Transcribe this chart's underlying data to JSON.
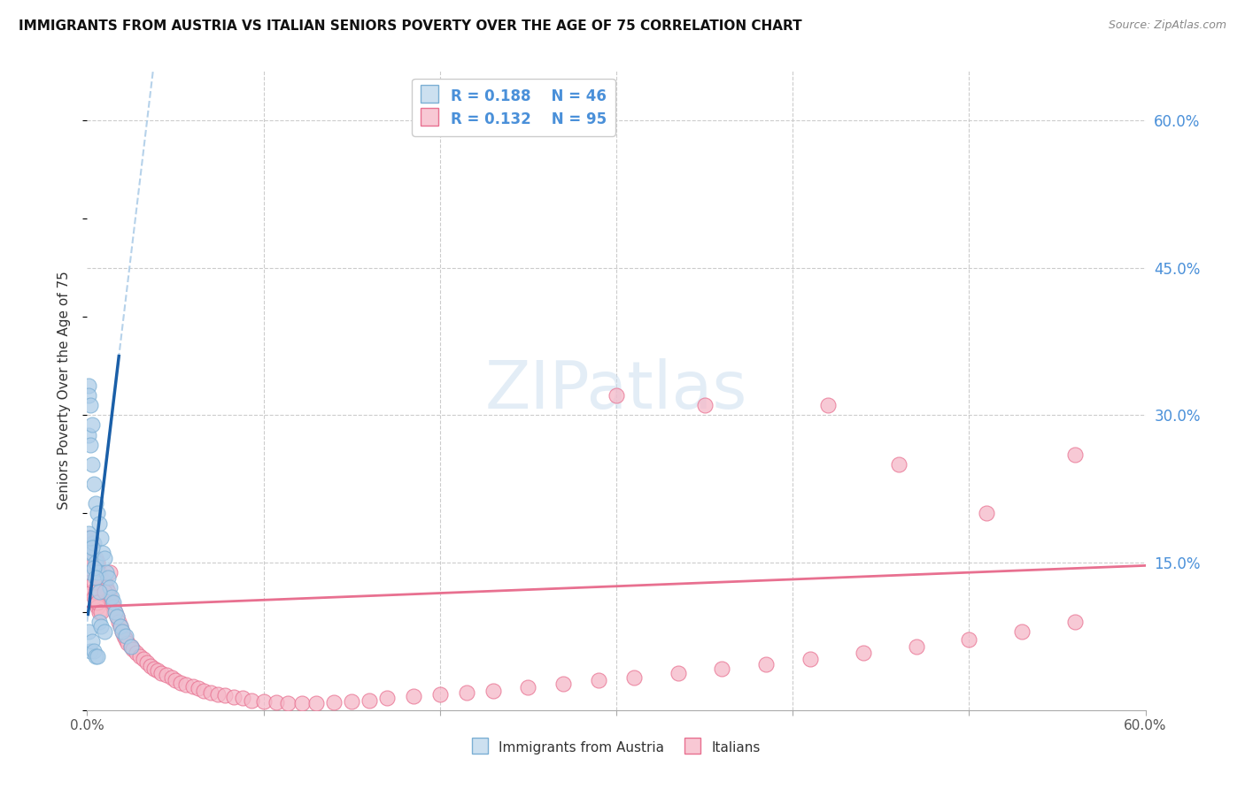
{
  "title": "IMMIGRANTS FROM AUSTRIA VS ITALIAN SENIORS POVERTY OVER THE AGE OF 75 CORRELATION CHART",
  "source": "Source: ZipAtlas.com",
  "ylabel": "Seniors Poverty Over the Age of 75",
  "xlim": [
    0.0,
    0.6
  ],
  "ylim": [
    0.0,
    0.65
  ],
  "x_ticks": [
    0.0,
    0.1,
    0.2,
    0.3,
    0.4,
    0.5,
    0.6
  ],
  "x_tick_labels": [
    "0.0%",
    "",
    "",
    "",
    "",
    "",
    "60.0%"
  ],
  "y_ticks_right": [
    0.15,
    0.3,
    0.45,
    0.6
  ],
  "y_tick_labels_right": [
    "15.0%",
    "30.0%",
    "45.0%",
    "60.0%"
  ],
  "grid_color": "#cccccc",
  "background_color": "#ffffff",
  "austria_fill_color": "#aecde8",
  "austria_edge_color": "#7bafd4",
  "italy_fill_color": "#f5b8c8",
  "italy_edge_color": "#e87090",
  "austria_trend_solid_color": "#1a5fa8",
  "austria_trend_dash_color": "#aecde8",
  "italy_trend_color": "#e87090",
  "label_color": "#4a90d9",
  "watermark_color": "#cddff0",
  "austria_R": "0.188",
  "austria_N": "46",
  "italy_R": "0.132",
  "italy_N": "95",
  "legend_austria": "Immigrants from Austria",
  "legend_italy": "Italians",
  "austria_x": [
    0.001,
    0.001,
    0.001,
    0.001,
    0.002,
    0.002,
    0.002,
    0.002,
    0.002,
    0.003,
    0.003,
    0.003,
    0.003,
    0.004,
    0.004,
    0.004,
    0.005,
    0.005,
    0.005,
    0.006,
    0.006,
    0.006,
    0.007,
    0.007,
    0.008,
    0.008,
    0.009,
    0.01,
    0.01,
    0.011,
    0.012,
    0.013,
    0.014,
    0.015,
    0.016,
    0.017,
    0.019,
    0.02,
    0.022,
    0.025,
    0.001,
    0.002,
    0.003,
    0.004,
    0.005,
    0.007
  ],
  "austria_y": [
    0.33,
    0.32,
    0.28,
    0.08,
    0.31,
    0.27,
    0.16,
    0.14,
    0.06,
    0.29,
    0.25,
    0.16,
    0.07,
    0.23,
    0.17,
    0.06,
    0.21,
    0.15,
    0.055,
    0.2,
    0.14,
    0.055,
    0.19,
    0.09,
    0.175,
    0.085,
    0.16,
    0.155,
    0.08,
    0.14,
    0.135,
    0.125,
    0.115,
    0.11,
    0.1,
    0.095,
    0.085,
    0.08,
    0.075,
    0.065,
    0.18,
    0.175,
    0.165,
    0.145,
    0.135,
    0.12
  ],
  "italy_x": [
    0.001,
    0.001,
    0.002,
    0.002,
    0.003,
    0.003,
    0.004,
    0.004,
    0.005,
    0.005,
    0.006,
    0.006,
    0.007,
    0.007,
    0.008,
    0.009,
    0.01,
    0.01,
    0.011,
    0.012,
    0.013,
    0.013,
    0.014,
    0.015,
    0.016,
    0.017,
    0.018,
    0.019,
    0.02,
    0.021,
    0.022,
    0.023,
    0.025,
    0.026,
    0.028,
    0.03,
    0.032,
    0.034,
    0.036,
    0.038,
    0.04,
    0.042,
    0.045,
    0.048,
    0.05,
    0.053,
    0.056,
    0.06,
    0.063,
    0.066,
    0.07,
    0.074,
    0.078,
    0.083,
    0.088,
    0.093,
    0.1,
    0.107,
    0.114,
    0.122,
    0.13,
    0.14,
    0.15,
    0.16,
    0.17,
    0.185,
    0.2,
    0.215,
    0.23,
    0.25,
    0.27,
    0.29,
    0.31,
    0.335,
    0.36,
    0.385,
    0.41,
    0.44,
    0.47,
    0.5,
    0.53,
    0.56,
    0.002,
    0.003,
    0.004,
    0.005,
    0.006,
    0.008,
    0.01,
    0.3,
    0.35,
    0.42,
    0.46,
    0.51,
    0.56
  ],
  "italy_y": [
    0.175,
    0.14,
    0.165,
    0.13,
    0.155,
    0.12,
    0.155,
    0.115,
    0.155,
    0.11,
    0.15,
    0.105,
    0.14,
    0.1,
    0.135,
    0.13,
    0.13,
    0.125,
    0.125,
    0.12,
    0.115,
    0.14,
    0.11,
    0.105,
    0.1,
    0.095,
    0.09,
    0.085,
    0.08,
    0.075,
    0.072,
    0.068,
    0.065,
    0.062,
    0.058,
    0.055,
    0.052,
    0.048,
    0.045,
    0.042,
    0.04,
    0.038,
    0.036,
    0.033,
    0.03,
    0.028,
    0.026,
    0.024,
    0.022,
    0.02,
    0.018,
    0.016,
    0.015,
    0.013,
    0.012,
    0.01,
    0.009,
    0.008,
    0.007,
    0.007,
    0.007,
    0.008,
    0.009,
    0.01,
    0.012,
    0.014,
    0.016,
    0.018,
    0.02,
    0.023,
    0.027,
    0.03,
    0.033,
    0.038,
    0.042,
    0.047,
    0.052,
    0.058,
    0.065,
    0.072,
    0.08,
    0.09,
    0.15,
    0.17,
    0.13,
    0.12,
    0.11,
    0.1,
    0.12,
    0.32,
    0.31,
    0.31,
    0.25,
    0.2,
    0.26
  ],
  "austria_trend_x0": 0.0,
  "austria_trend_y0": 0.09,
  "austria_trend_slope": 15.0,
  "italy_trend_x0": 0.0,
  "italy_trend_y0": 0.105,
  "italy_trend_slope": 0.07
}
